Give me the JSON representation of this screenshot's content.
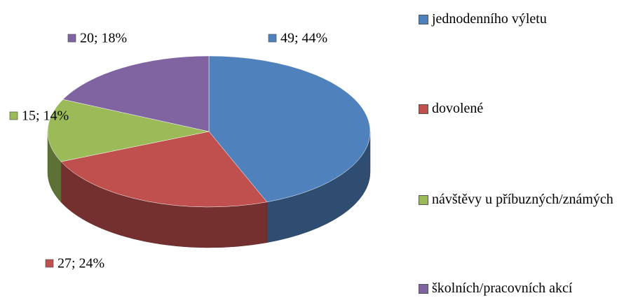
{
  "chart_data": {
    "type": "pie",
    "categories": [
      "jednodenního výletu",
      "dovolené",
      "návštěvy u příbuzných/známých",
      "školních/pracovních akcí"
    ],
    "values": [
      49,
      27,
      15,
      20
    ],
    "value_labels": [
      "49; 44%",
      "27; 24%",
      "15; 14%",
      "20; 18%"
    ],
    "colors": [
      "#4f81bd",
      "#c0504d",
      "#9bbb59",
      "#8064a2"
    ],
    "legend": "right"
  }
}
